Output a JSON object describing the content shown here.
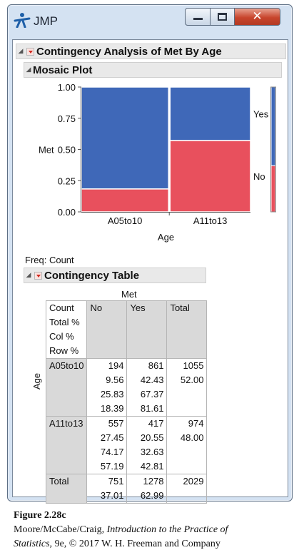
{
  "window": {
    "title": "JMP"
  },
  "report": {
    "title": "Contingency Analysis of Met By Age",
    "mosaic": {
      "title": "Mosaic Plot"
    },
    "freq_label": "Freq: Count",
    "table_section": {
      "title": "Contingency Table"
    }
  },
  "chart_data": {
    "type": "bar",
    "subtype": "mosaic",
    "xlabel": "Age",
    "ylabel": "Met",
    "categories": [
      "A05to10",
      "A11to13"
    ],
    "category_widths": [
      1055,
      974
    ],
    "series": [
      {
        "name": "No",
        "color": "#e8505d",
        "values": [
          0.1839,
          0.5719
        ]
      },
      {
        "name": "Yes",
        "color": "#3f68b8",
        "values": [
          0.8161,
          0.4281
        ]
      }
    ],
    "overall_proportions": [
      0.3701,
      0.6299
    ],
    "yticks": [
      "0.00",
      "0.25",
      "0.50",
      "0.75",
      "1.00"
    ],
    "ylim": [
      0,
      1
    ]
  },
  "contingency": {
    "column_group_label": "Met",
    "row_group_label": "Age",
    "stat_labels": [
      "Count",
      "Total %",
      "Col %",
      "Row %"
    ],
    "column_headers": [
      "No",
      "Yes",
      "Total"
    ],
    "rows": [
      {
        "label": "A05to10",
        "no": [
          "194",
          "9.56",
          "25.83",
          "18.39"
        ],
        "yes": [
          "861",
          "42.43",
          "67.37",
          "81.61"
        ],
        "total": [
          "1055",
          "52.00"
        ]
      },
      {
        "label": "A11to13",
        "no": [
          "557",
          "27.45",
          "74.17",
          "57.19"
        ],
        "yes": [
          "417",
          "20.55",
          "32.63",
          "42.81"
        ],
        "total": [
          "974",
          "48.00"
        ]
      }
    ],
    "total_row": {
      "label": "Total",
      "no": [
        "751",
        "37.01"
      ],
      "yes": [
        "1278",
        "62.99"
      ],
      "total": [
        "2029"
      ]
    }
  },
  "caption": {
    "figure": "Figure 2.28c",
    "line1_prefix": "Moore/McCabe/Craig, ",
    "line1_italic": "Introduction to the Practice of",
    "line2_italic": "Statistics,",
    "line2_rest": " 9e, © 2017 W. H. Freeman and Company"
  },
  "icons": {
    "app": "jmp-logo-icon",
    "minimize": "minimize-icon",
    "maximize": "maximize-icon",
    "close": "close-icon"
  },
  "colors": {
    "no": "#e8505d",
    "yes": "#3f68b8",
    "window_frame": "#d4e2f2",
    "close_button": "#c8452d"
  }
}
